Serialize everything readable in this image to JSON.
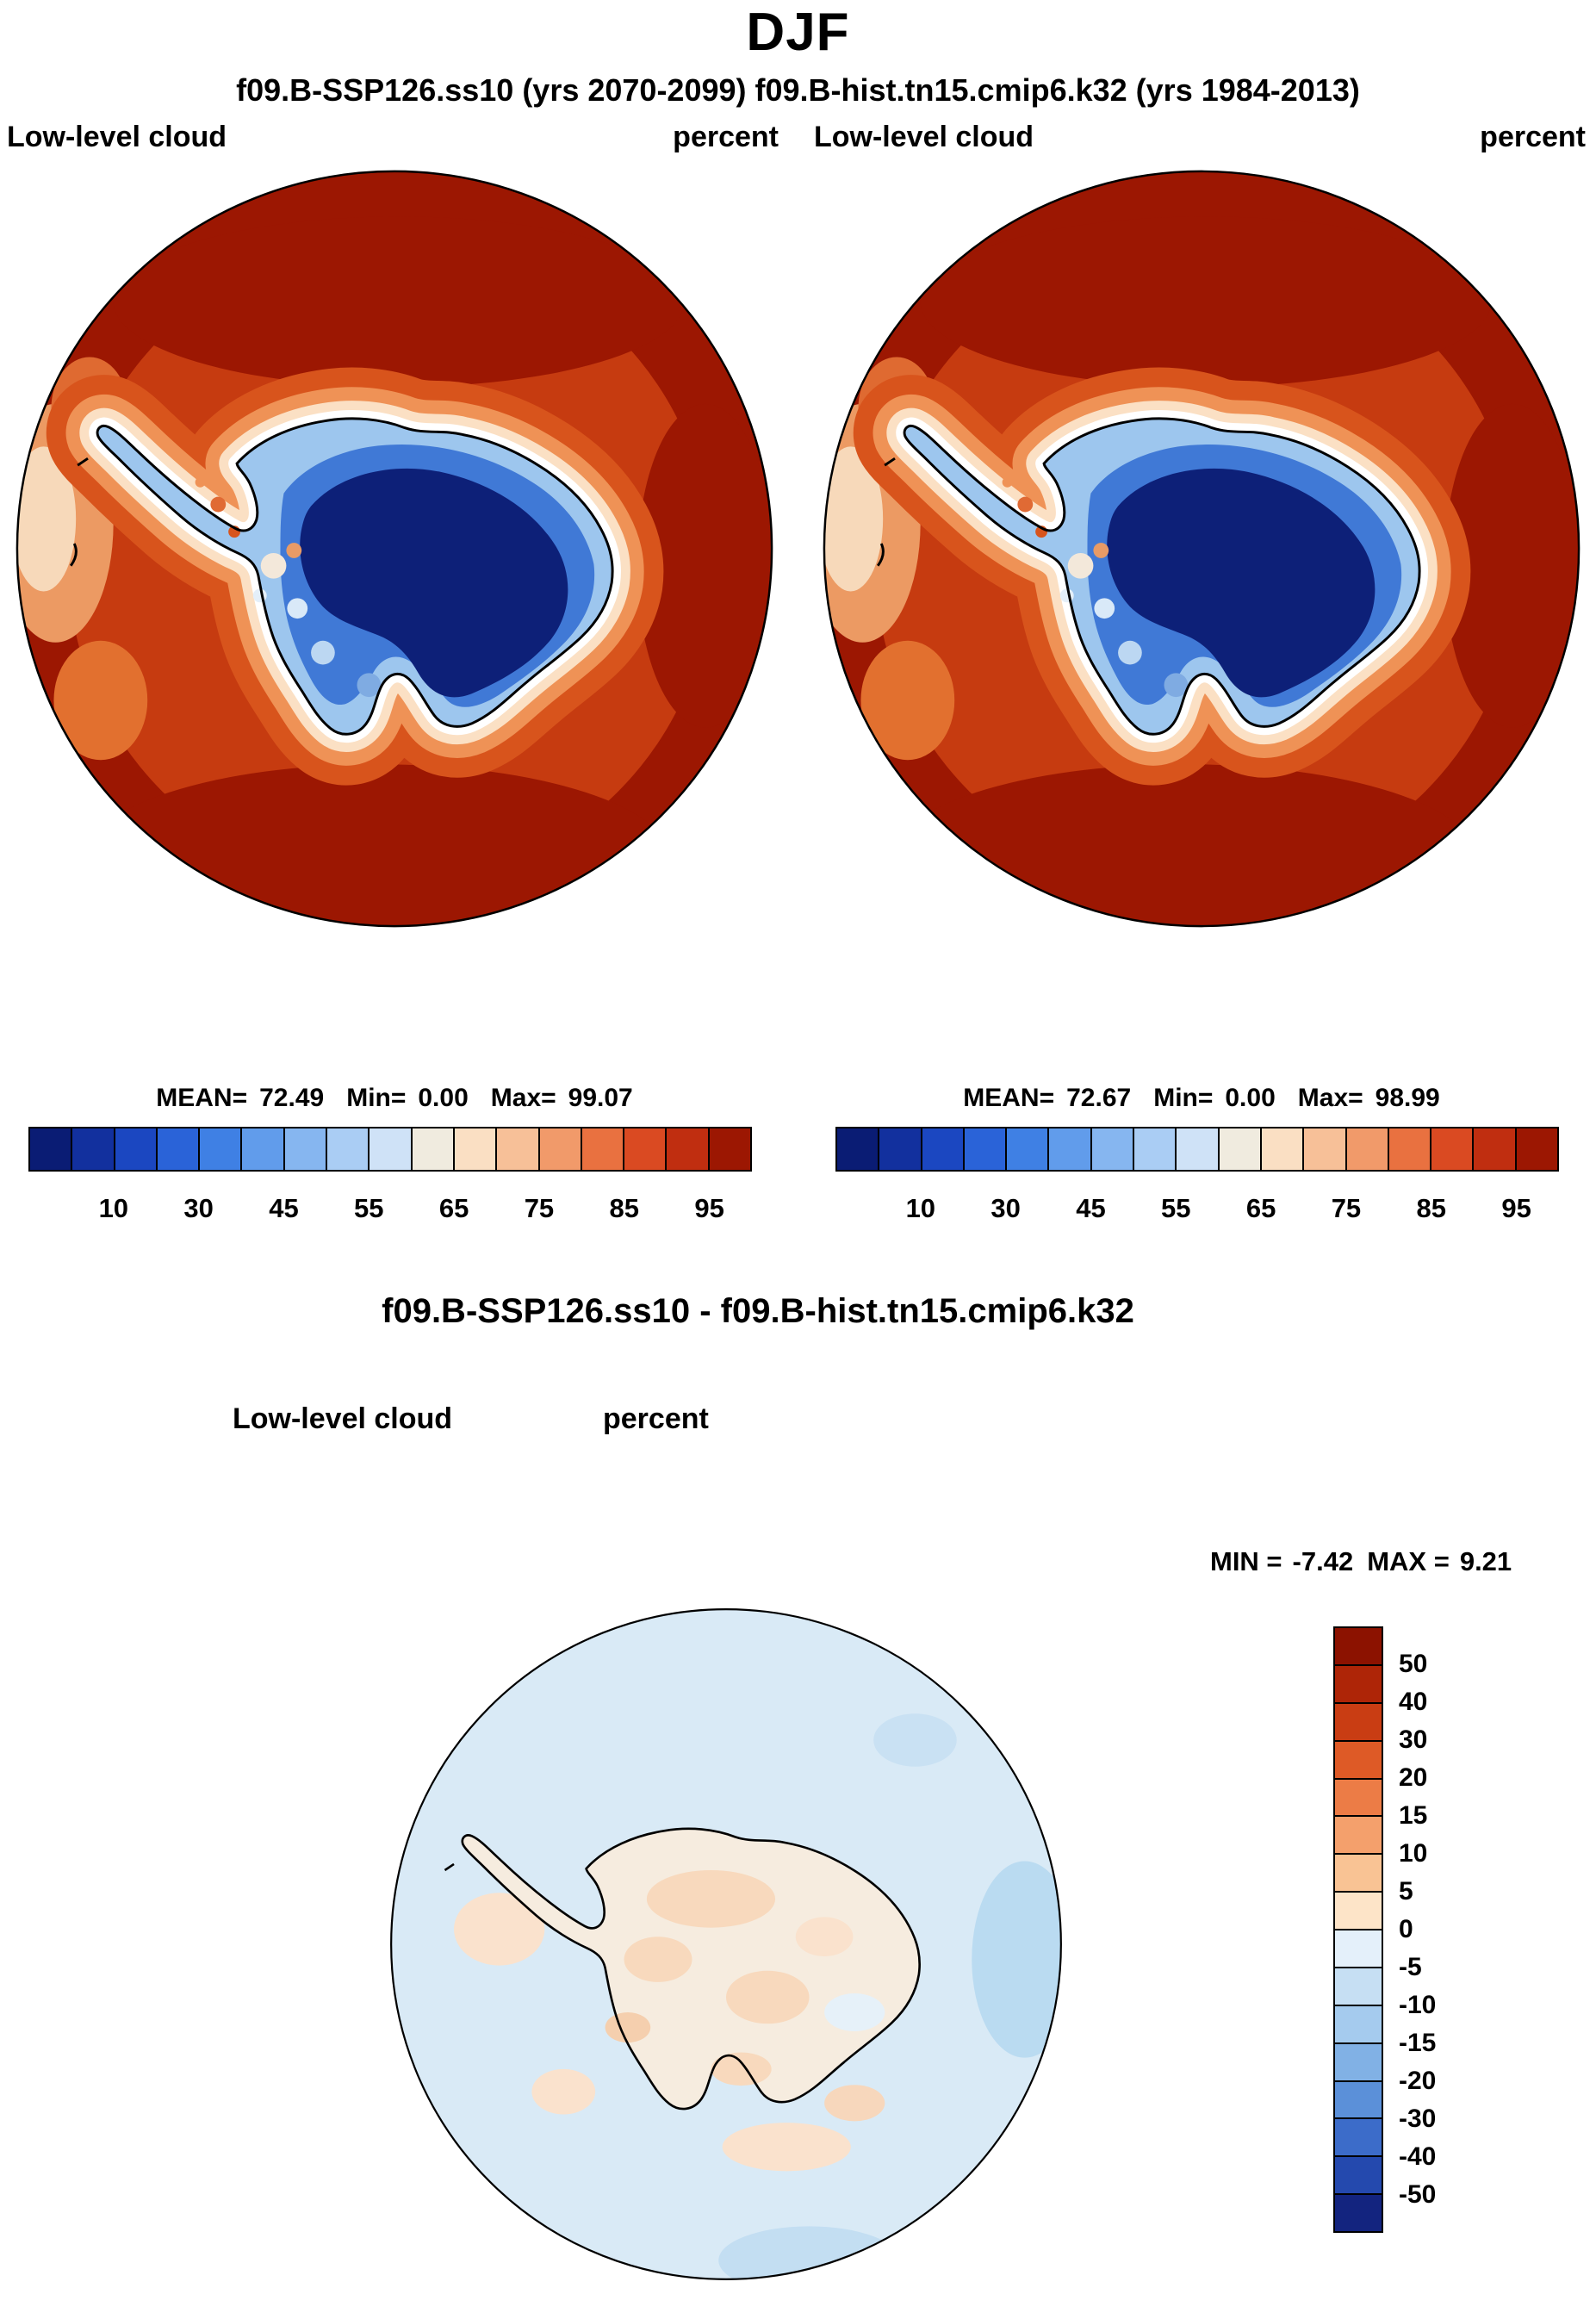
{
  "figure": {
    "title": "DJF",
    "subtitle": "f09.B-SSP126.ss10 (yrs 2070-2099)  f09.B-hist.tn15.cmip6.k32 (yrs 1984-2013)"
  },
  "panels": {
    "left": {
      "variable": "Low-level cloud",
      "units": "percent",
      "stats": {
        "mean_label": "MEAN=",
        "mean": "72.49",
        "min_label": "Min=",
        "min": "0.00",
        "max_label": "Max=",
        "max": "99.07"
      },
      "colorbar": {
        "colors": [
          "#0a1c74",
          "#12309e",
          "#1b47c1",
          "#2a63d8",
          "#3f80e4",
          "#619ceb",
          "#86b6f0",
          "#aacdf4",
          "#cfe2f7",
          "#f0ebdf",
          "#fadfc3",
          "#f7c098",
          "#f19a6a",
          "#e97140",
          "#da4a22",
          "#c02e10",
          "#9c1702"
        ],
        "ticks": [
          "10",
          "30",
          "45",
          "55",
          "65",
          "75",
          "85",
          "95"
        ]
      }
    },
    "right": {
      "variable": "Low-level cloud",
      "units": "percent",
      "stats": {
        "mean_label": "MEAN=",
        "mean": "72.67",
        "min_label": "Min=",
        "min": "0.00",
        "max_label": "Max=",
        "max": "98.99"
      },
      "colorbar": {
        "colors": [
          "#0a1c74",
          "#12309e",
          "#1b47c1",
          "#2a63d8",
          "#3f80e4",
          "#619ceb",
          "#86b6f0",
          "#aacdf4",
          "#cfe2f7",
          "#f0ebdf",
          "#fadfc3",
          "#f7c098",
          "#f19a6a",
          "#e97140",
          "#da4a22",
          "#c02e10",
          "#9c1702"
        ],
        "ticks": [
          "10",
          "30",
          "45",
          "55",
          "65",
          "75",
          "85",
          "95"
        ]
      }
    }
  },
  "difference": {
    "title": "f09.B-SSP126.ss10 - f09.B-hist.tn15.cmip6.k32",
    "variable": "Low-level cloud",
    "units": "percent",
    "min_label": "MIN =",
    "min": "-7.42",
    "max_label": "MAX =",
    "max": "9.21",
    "colorbar": {
      "colors": [
        "#8c1200",
        "#ae2507",
        "#c93d13",
        "#de5a26",
        "#ec7c46",
        "#f4a06c",
        "#f9c394",
        "#fde4c8",
        "#e4f0fa",
        "#c6dff3",
        "#a5cbee",
        "#81b1e5",
        "#5b90d9",
        "#3c6cc9",
        "#2449ae",
        "#13247f"
      ],
      "ticks": [
        "50",
        "40",
        "30",
        "20",
        "15",
        "10",
        "5",
        "0",
        "-5",
        "-10",
        "-15",
        "-20",
        "-30",
        "-40",
        "-50"
      ]
    }
  },
  "chart_data": [
    {
      "type": "heatmap",
      "panel": "top-left",
      "title": "Low-level cloud",
      "units": "percent",
      "season": "DJF",
      "dataset": "f09.B-SSP126.ss10 (yrs 2070-2099)",
      "projection": "south polar stereographic",
      "stats": {
        "mean": 72.49,
        "min": 0.0,
        "max": 99.07
      },
      "contour_levels": [
        5,
        10,
        20,
        30,
        40,
        45,
        50,
        55,
        60,
        65,
        70,
        75,
        80,
        85,
        90,
        95
      ],
      "labeled_ticks": [
        10,
        30,
        45,
        55,
        65,
        75,
        85,
        95
      ],
      "palette": [
        "#0a1c74",
        "#12309e",
        "#1b47c1",
        "#2a63d8",
        "#3f80e4",
        "#619ceb",
        "#86b6f0",
        "#aacdf4",
        "#cfe2f7",
        "#f0ebdf",
        "#fadfc3",
        "#f7c098",
        "#f19a6a",
        "#e97140",
        "#da4a22",
        "#c02e10",
        "#9c1702"
      ],
      "pattern": "dark red (>95%) low cloud over Southern Ocean ring, dark navy (<10-30%) over Antarctic interior, sharp white/light gradient along coastline, mixed speckled values over West Antarctica and Weddell Sea"
    },
    {
      "type": "heatmap",
      "panel": "top-right",
      "title": "Low-level cloud",
      "units": "percent",
      "season": "DJF",
      "dataset": "f09.B-hist.tn15.cmip6.k32 (yrs 1984-2013)",
      "projection": "south polar stereographic",
      "stats": {
        "mean": 72.67,
        "min": 0.0,
        "max": 98.99
      },
      "contour_levels": [
        5,
        10,
        20,
        30,
        40,
        45,
        50,
        55,
        60,
        65,
        70,
        75,
        80,
        85,
        90,
        95
      ],
      "labeled_ticks": [
        10,
        30,
        45,
        55,
        65,
        75,
        85,
        95
      ],
      "palette": [
        "#0a1c74",
        "#12309e",
        "#1b47c1",
        "#2a63d8",
        "#3f80e4",
        "#619ceb",
        "#86b6f0",
        "#aacdf4",
        "#cfe2f7",
        "#f0ebdf",
        "#fadfc3",
        "#f7c098",
        "#f19a6a",
        "#e97140",
        "#da4a22",
        "#c02e10",
        "#9c1702"
      ],
      "pattern": "nearly identical to SSP126 panel: high cloud over ocean, very low cloud over continent interior"
    },
    {
      "type": "heatmap",
      "panel": "bottom-difference",
      "title": "Low-level cloud",
      "units": "percent",
      "dataset": "f09.B-SSP126.ss10 - f09.B-hist.tn15.cmip6.k32",
      "projection": "south polar stereographic",
      "stats": {
        "min": -7.42,
        "max": 9.21
      },
      "contour_levels": [
        -50,
        -40,
        -30,
        -20,
        -15,
        -10,
        -5,
        0,
        5,
        10,
        15,
        20,
        30,
        40,
        50
      ],
      "labeled_ticks": [
        50,
        40,
        30,
        20,
        15,
        10,
        5,
        0,
        -5,
        -10,
        -15,
        -20,
        -30,
        -40,
        -50
      ],
      "palette": [
        "#8c1200",
        "#ae2507",
        "#c93d13",
        "#de5a26",
        "#ec7c46",
        "#f4a06c",
        "#f9c394",
        "#fde4c8",
        "#e4f0fa",
        "#c6dff3",
        "#a5cbee",
        "#81b1e5",
        "#5b90d9",
        "#3c6cc9",
        "#2449ae",
        "#13247f"
      ],
      "pattern": "weak differences only: pale blue (0 to -5) over most of Southern Ocean, pale peach (0 to +5) patches over the continent and scattered ocean areas"
    }
  ]
}
